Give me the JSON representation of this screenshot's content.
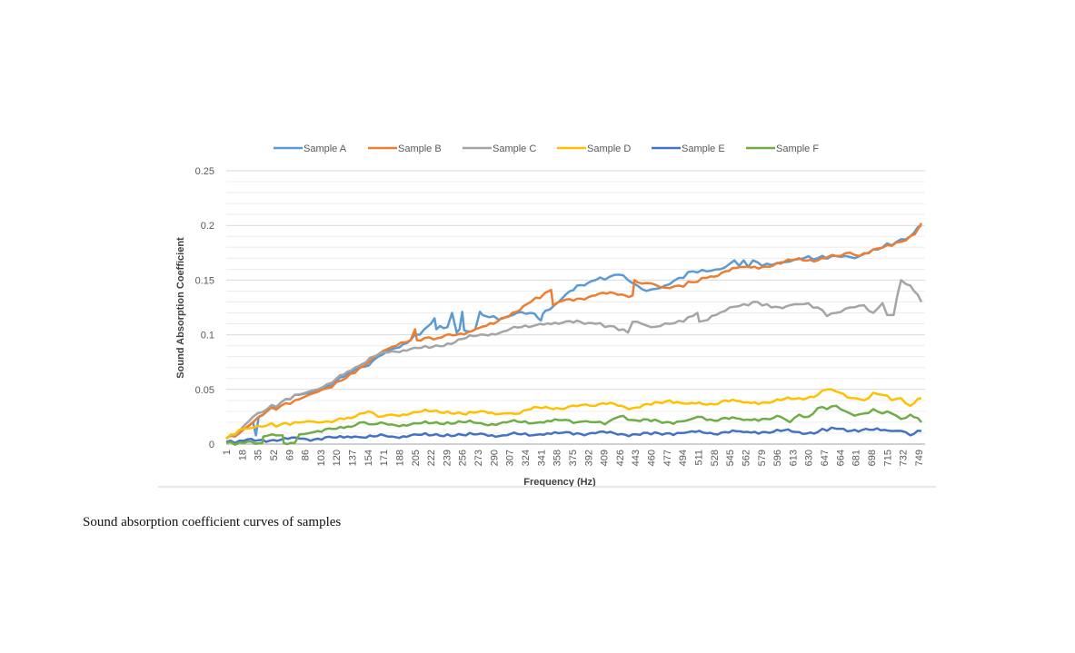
{
  "caption": "Sound absorption coefficient curves of samples",
  "chart_data": {
    "type": "line",
    "title": "",
    "xlabel": "Frequency (Hz)",
    "ylabel": "Sound Absorption Coefficient",
    "xlim": [
      1,
      760
    ],
    "ylim": [
      0,
      0.25
    ],
    "y_ticks": [
      "0",
      "0.05",
      "0.1",
      "0.15",
      "0.2",
      "0.25"
    ],
    "y_tick_values": [
      0,
      0.05,
      0.1,
      0.15,
      0.2,
      0.25
    ],
    "x_ticks": [
      "1",
      "18",
      "35",
      "52",
      "69",
      "86",
      "103",
      "120",
      "137",
      "154",
      "171",
      "188",
      "205",
      "222",
      "239",
      "256",
      "273",
      "290",
      "307",
      "324",
      "341",
      "358",
      "375",
      "392",
      "409",
      "426",
      "443",
      "460",
      "477",
      "494",
      "511",
      "528",
      "545",
      "562",
      "579",
      "596",
      "613",
      "630",
      "647",
      "664",
      "681",
      "698",
      "715",
      "732",
      "749"
    ],
    "grid": "horizontal major and minor",
    "legend_position": "top",
    "series": [
      {
        "name": "Sample A",
        "color": "#5B9BD5",
        "x": [
          1,
          15,
          30,
          33,
          36,
          45,
          60,
          75,
          90,
          105,
          120,
          140,
          155,
          165,
          180,
          200,
          215,
          222,
          226,
          228,
          232,
          240,
          245,
          250,
          253,
          256,
          258,
          262,
          270,
          275,
          278,
          285,
          300,
          315,
          330,
          338,
          341,
          343,
          346,
          360,
          380,
          400,
          415,
          425,
          435,
          445,
          455,
          465,
          475,
          490,
          505,
          520,
          535,
          545,
          550,
          555,
          560,
          565,
          570,
          580,
          595,
          610,
          625,
          640,
          655,
          670,
          680,
          695,
          710,
          725,
          740,
          752
        ],
        "y": [
          0.005,
          0.01,
          0.02,
          0.008,
          0.025,
          0.03,
          0.038,
          0.045,
          0.047,
          0.05,
          0.058,
          0.068,
          0.072,
          0.08,
          0.087,
          0.095,
          0.105,
          0.11,
          0.115,
          0.105,
          0.108,
          0.107,
          0.12,
          0.102,
          0.105,
          0.121,
          0.104,
          0.103,
          0.105,
          0.121,
          0.118,
          0.116,
          0.115,
          0.12,
          0.12,
          0.115,
          0.113,
          0.119,
          0.122,
          0.13,
          0.145,
          0.15,
          0.153,
          0.155,
          0.15,
          0.145,
          0.14,
          0.142,
          0.145,
          0.152,
          0.158,
          0.158,
          0.16,
          0.165,
          0.168,
          0.163,
          0.168,
          0.162,
          0.168,
          0.163,
          0.165,
          0.167,
          0.17,
          0.17,
          0.172,
          0.172,
          0.17,
          0.175,
          0.18,
          0.185,
          0.19,
          0.2
        ]
      },
      {
        "name": "Sample B",
        "color": "#ED7D31",
        "x": [
          1,
          15,
          30,
          45,
          60,
          75,
          90,
          105,
          115,
          125,
          140,
          155,
          170,
          185,
          200,
          205,
          207,
          215,
          230,
          250,
          270,
          290,
          310,
          330,
          345,
          352,
          354,
          360,
          380,
          400,
          420,
          440,
          442,
          445,
          460,
          475,
          490,
          505,
          520,
          540,
          560,
          580,
          600,
          620,
          640,
          660,
          675,
          685,
          700,
          715,
          730,
          745,
          752
        ],
        "y": [
          0.005,
          0.01,
          0.02,
          0.03,
          0.035,
          0.04,
          0.045,
          0.05,
          0.052,
          0.058,
          0.065,
          0.075,
          0.085,
          0.09,
          0.095,
          0.105,
          0.095,
          0.097,
          0.097,
          0.1,
          0.105,
          0.11,
          0.12,
          0.13,
          0.138,
          0.141,
          0.127,
          0.13,
          0.133,
          0.136,
          0.138,
          0.136,
          0.15,
          0.148,
          0.147,
          0.143,
          0.145,
          0.148,
          0.152,
          0.158,
          0.162,
          0.162,
          0.165,
          0.17,
          0.168,
          0.172,
          0.175,
          0.172,
          0.178,
          0.182,
          0.185,
          0.192,
          0.202
        ]
      },
      {
        "name": "Sample C",
        "color": "#A5A5A5",
        "x": [
          1,
          15,
          30,
          45,
          60,
          75,
          90,
          105,
          120,
          140,
          160,
          180,
          200,
          220,
          240,
          260,
          280,
          300,
          320,
          340,
          360,
          380,
          400,
          415,
          430,
          435,
          440,
          450,
          460,
          470,
          480,
          495,
          510,
          512,
          530,
          545,
          560,
          575,
          590,
          610,
          625,
          640,
          650,
          660,
          675,
          690,
          700,
          710,
          715,
          718,
          722,
          730,
          740,
          752
        ],
        "y": [
          0.005,
          0.012,
          0.025,
          0.032,
          0.038,
          0.045,
          0.048,
          0.052,
          0.06,
          0.07,
          0.08,
          0.085,
          0.087,
          0.088,
          0.092,
          0.097,
          0.1,
          0.103,
          0.107,
          0.11,
          0.11,
          0.113,
          0.11,
          0.108,
          0.105,
          0.102,
          0.112,
          0.11,
          0.107,
          0.108,
          0.11,
          0.112,
          0.12,
          0.112,
          0.118,
          0.125,
          0.128,
          0.13,
          0.125,
          0.127,
          0.128,
          0.125,
          0.117,
          0.12,
          0.125,
          0.127,
          0.12,
          0.129,
          0.118,
          0.118,
          0.118,
          0.15,
          0.145,
          0.13
        ]
      },
      {
        "name": "Sample D",
        "color": "#FFC000",
        "x": [
          1,
          15,
          30,
          45,
          60,
          75,
          90,
          105,
          120,
          140,
          155,
          165,
          180,
          200,
          220,
          240,
          260,
          280,
          300,
          310,
          330,
          350,
          370,
          385,
          400,
          420,
          440,
          460,
          480,
          500,
          520,
          540,
          560,
          580,
          600,
          620,
          640,
          650,
          660,
          680,
          690,
          700,
          710,
          720,
          730,
          740,
          752
        ],
        "y": [
          0.005,
          0.013,
          0.015,
          0.017,
          0.018,
          0.02,
          0.021,
          0.02,
          0.022,
          0.025,
          0.03,
          0.025,
          0.027,
          0.028,
          0.03,
          0.03,
          0.027,
          0.03,
          0.028,
          0.028,
          0.032,
          0.033,
          0.034,
          0.036,
          0.035,
          0.037,
          0.033,
          0.036,
          0.04,
          0.037,
          0.036,
          0.04,
          0.038,
          0.038,
          0.04,
          0.042,
          0.045,
          0.05,
          0.048,
          0.042,
          0.04,
          0.047,
          0.045,
          0.04,
          0.042,
          0.035,
          0.042
        ]
      },
      {
        "name": "Sample E",
        "color": "#4472C4",
        "x": [
          1,
          20,
          40,
          60,
          80,
          100,
          120,
          140,
          160,
          180,
          200,
          220,
          240,
          260,
          280,
          300,
          320,
          340,
          360,
          380,
          400,
          420,
          440,
          460,
          480,
          500,
          520,
          540,
          560,
          580,
          600,
          620,
          640,
          645,
          660,
          680,
          700,
          720,
          735,
          740,
          752
        ],
        "y": [
          0.002,
          0.003,
          0.004,
          0.004,
          0.005,
          0.005,
          0.006,
          0.007,
          0.007,
          0.007,
          0.008,
          0.008,
          0.009,
          0.008,
          0.009,
          0.008,
          0.009,
          0.009,
          0.01,
          0.01,
          0.01,
          0.01,
          0.009,
          0.009,
          0.01,
          0.011,
          0.01,
          0.011,
          0.011,
          0.011,
          0.012,
          0.011,
          0.011,
          0.014,
          0.014,
          0.013,
          0.013,
          0.012,
          0.011,
          0.008,
          0.012
        ]
      },
      {
        "name": "Sample F",
        "color": "#70AD47",
        "x": [
          1,
          20,
          40,
          41,
          55,
          62,
          63,
          75,
          80,
          90,
          100,
          120,
          140,
          150,
          160,
          180,
          200,
          220,
          240,
          260,
          280,
          300,
          320,
          340,
          360,
          380,
          390,
          400,
          410,
          425,
          440,
          460,
          480,
          500,
          510,
          520,
          540,
          560,
          580,
          600,
          610,
          620,
          630,
          640,
          650,
          660,
          670,
          680,
          690,
          700,
          710,
          720,
          730,
          740,
          752
        ],
        "y": [
          0.001,
          0.001,
          0.001,
          0.007,
          0.008,
          0.008,
          0.001,
          0.001,
          0.009,
          0.01,
          0.012,
          0.014,
          0.017,
          0.02,
          0.018,
          0.018,
          0.018,
          0.019,
          0.02,
          0.02,
          0.018,
          0.02,
          0.02,
          0.02,
          0.022,
          0.02,
          0.021,
          0.02,
          0.018,
          0.025,
          0.022,
          0.021,
          0.02,
          0.022,
          0.025,
          0.022,
          0.024,
          0.022,
          0.023,
          0.025,
          0.02,
          0.027,
          0.025,
          0.033,
          0.032,
          0.035,
          0.03,
          0.026,
          0.028,
          0.032,
          0.028,
          0.028,
          0.023,
          0.027,
          0.02
        ]
      }
    ]
  }
}
